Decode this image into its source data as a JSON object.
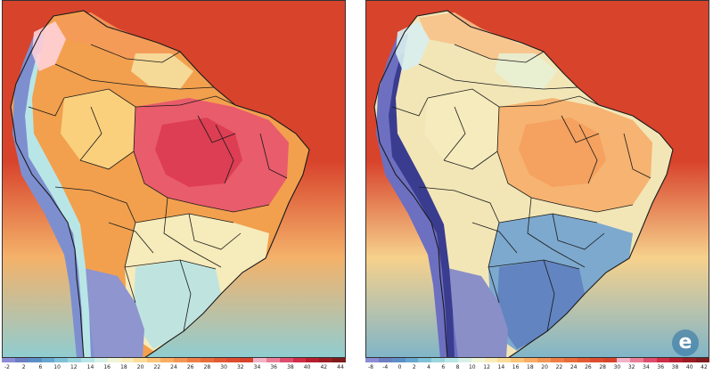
{
  "palette": [
    "#8c8cd6",
    "#6c7ec4",
    "#5c8fc6",
    "#66a7cf",
    "#7fc2d8",
    "#9bd6de",
    "#b8e6e6",
    "#d7f0e8",
    "#f1f5d8",
    "#f8ecb8",
    "#fbdc98",
    "#fbc57a",
    "#f9ad62",
    "#f39555",
    "#ee7e46",
    "#e96c3c",
    "#e35a34",
    "#de4d31",
    "#d8432c",
    "#f2b3c6",
    "#ea7e98",
    "#de4d6e",
    "#cf2c45",
    "#b81d2f",
    "#9a1c22",
    "#7e1b1e"
  ],
  "panels": [
    {
      "id": "left",
      "scale_labels": [
        "-2",
        "2",
        "6",
        "10",
        "12",
        "14",
        "16",
        "18",
        "20",
        "22",
        "24",
        "26",
        "28",
        "30",
        "32",
        "34",
        "36",
        "38",
        "40",
        "42",
        "44"
      ],
      "colors": {
        "ocean_north": "#d8432c",
        "ocean_south": "#f4b26a",
        "ocean_far_south": "#8fcdd2",
        "land_base": "#f2a04e",
        "andes": "#7e8fd0",
        "andes_core": "#b8e6e6",
        "patagonia": "#8f95cf",
        "hot_core": "#e8596d",
        "hot_center": "#dc3c52",
        "north_coast": "#f59a5a",
        "guiana_cool": "#f6e3a3",
        "amazon_west": "#fbd583",
        "south_cool": "#f6efc0",
        "southern_cone": "#b9e3e3",
        "northwest": "#ffd0d8"
      }
    },
    {
      "id": "right",
      "scale_labels": [
        "-8",
        "-4",
        "0",
        "2",
        "4",
        "6",
        "8",
        "10",
        "12",
        "14",
        "16",
        "18",
        "20",
        "22",
        "24",
        "26",
        "28",
        "30",
        "32",
        "34",
        "36",
        "38",
        "40",
        "42"
      ],
      "colors": {
        "ocean_north": "#d8432c",
        "ocean_south": "#f6d18c",
        "ocean_far_south": "#7fb5c9",
        "land_base": "#f2e6b7",
        "andes": "#6d6fc1",
        "andes_core": "#3a3c8f",
        "patagonia": "#8a8fc8",
        "hot_core": "#f5b06d",
        "hot_center": "#f4a05e",
        "north_coast": "#f7c28a",
        "guiana_cool": "#e8f1d7",
        "amazon_west": "#f6ebbd",
        "south_cool": "#76a5cf",
        "southern_cone": "#5f7fc0",
        "northwest": "#d8eef0"
      }
    }
  ],
  "watermark": {
    "glyph": "e",
    "icon": "watermark-logo-icon"
  }
}
